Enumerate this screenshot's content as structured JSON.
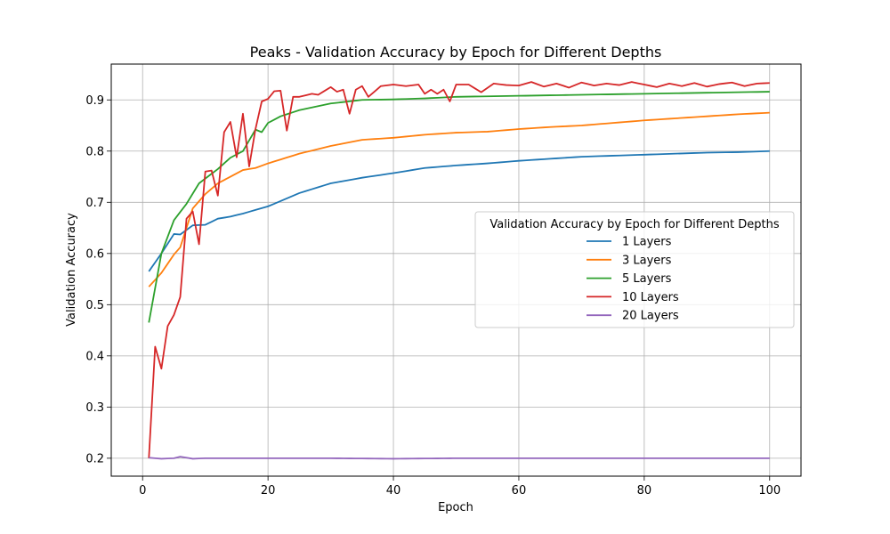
{
  "chart_data": {
    "type": "line",
    "title": "Peaks - Validation Accuracy by Epoch for Different Depths",
    "xlabel": "Epoch",
    "ylabel": "Validation Accuracy",
    "xlim": [
      -5,
      105
    ],
    "ylim": [
      0.165,
      0.97
    ],
    "xticks": [
      0,
      20,
      40,
      60,
      80,
      100
    ],
    "yticks": [
      0.2,
      0.3,
      0.4,
      0.5,
      0.6,
      0.7,
      0.8,
      0.9
    ],
    "ytick_labels": [
      "0.2",
      "0.3",
      "0.4",
      "0.5",
      "0.6",
      "0.7",
      "0.8",
      "0.9"
    ],
    "grid": true,
    "legend": {
      "title": "Validation Accuracy by Epoch for Different Depths",
      "placement": "center-right"
    },
    "series": [
      {
        "name": "1 Layers",
        "color": "#1f77b4",
        "keypoints": [
          [
            1,
            0.565
          ],
          [
            3,
            0.6
          ],
          [
            5,
            0.638
          ],
          [
            6,
            0.637
          ],
          [
            8,
            0.655
          ],
          [
            10,
            0.656
          ],
          [
            12,
            0.668
          ],
          [
            14,
            0.672
          ],
          [
            16,
            0.678
          ],
          [
            20,
            0.692
          ],
          [
            25,
            0.718
          ],
          [
            30,
            0.737
          ],
          [
            35,
            0.748
          ],
          [
            40,
            0.757
          ],
          [
            45,
            0.767
          ],
          [
            50,
            0.772
          ],
          [
            55,
            0.776
          ],
          [
            60,
            0.781
          ],
          [
            65,
            0.785
          ],
          [
            70,
            0.789
          ],
          [
            75,
            0.791
          ],
          [
            80,
            0.793
          ],
          [
            85,
            0.795
          ],
          [
            90,
            0.797
          ],
          [
            95,
            0.798
          ],
          [
            100,
            0.8
          ]
        ]
      },
      {
        "name": "3 Layers",
        "color": "#ff7f0e",
        "keypoints": [
          [
            1,
            0.535
          ],
          [
            3,
            0.562
          ],
          [
            5,
            0.598
          ],
          [
            6,
            0.612
          ],
          [
            8,
            0.688
          ],
          [
            10,
            0.716
          ],
          [
            12,
            0.737
          ],
          [
            14,
            0.75
          ],
          [
            16,
            0.763
          ],
          [
            18,
            0.767
          ],
          [
            20,
            0.776
          ],
          [
            25,
            0.795
          ],
          [
            30,
            0.81
          ],
          [
            35,
            0.822
          ],
          [
            40,
            0.826
          ],
          [
            45,
            0.832
          ],
          [
            50,
            0.836
          ],
          [
            55,
            0.838
          ],
          [
            60,
            0.843
          ],
          [
            65,
            0.847
          ],
          [
            70,
            0.85
          ],
          [
            75,
            0.855
          ],
          [
            80,
            0.86
          ],
          [
            85,
            0.864
          ],
          [
            90,
            0.868
          ],
          [
            95,
            0.872
          ],
          [
            100,
            0.875
          ]
        ]
      },
      {
        "name": "5 Layers",
        "color": "#2ca02c",
        "keypoints": [
          [
            1,
            0.465
          ],
          [
            3,
            0.6
          ],
          [
            5,
            0.665
          ],
          [
            7,
            0.697
          ],
          [
            9,
            0.737
          ],
          [
            12,
            0.765
          ],
          [
            14,
            0.787
          ],
          [
            16,
            0.8
          ],
          [
            18,
            0.842
          ],
          [
            19,
            0.837
          ],
          [
            20,
            0.855
          ],
          [
            22,
            0.868
          ],
          [
            25,
            0.88
          ],
          [
            30,
            0.893
          ],
          [
            35,
            0.9
          ],
          [
            40,
            0.901
          ],
          [
            45,
            0.903
          ],
          [
            50,
            0.906
          ],
          [
            55,
            0.907
          ],
          [
            60,
            0.908
          ],
          [
            65,
            0.909
          ],
          [
            70,
            0.91
          ],
          [
            75,
            0.911
          ],
          [
            80,
            0.912
          ],
          [
            85,
            0.913
          ],
          [
            90,
            0.914
          ],
          [
            95,
            0.915
          ],
          [
            100,
            0.916
          ]
        ]
      },
      {
        "name": "10 Layers",
        "color": "#d62728",
        "keypoints": [
          [
            1,
            0.2
          ],
          [
            2,
            0.418
          ],
          [
            3,
            0.375
          ],
          [
            4,
            0.458
          ],
          [
            5,
            0.48
          ],
          [
            6,
            0.515
          ],
          [
            7,
            0.668
          ],
          [
            8,
            0.682
          ],
          [
            9,
            0.618
          ],
          [
            10,
            0.76
          ],
          [
            11,
            0.762
          ],
          [
            12,
            0.713
          ],
          [
            13,
            0.837
          ],
          [
            14,
            0.857
          ],
          [
            15,
            0.788
          ],
          [
            16,
            0.873
          ],
          [
            17,
            0.77
          ],
          [
            18,
            0.843
          ],
          [
            19,
            0.897
          ],
          [
            20,
            0.902
          ],
          [
            21,
            0.917
          ],
          [
            22,
            0.918
          ],
          [
            23,
            0.84
          ],
          [
            24,
            0.906
          ],
          [
            25,
            0.906
          ],
          [
            27,
            0.912
          ],
          [
            28,
            0.91
          ],
          [
            30,
            0.925
          ],
          [
            31,
            0.916
          ],
          [
            32,
            0.92
          ],
          [
            33,
            0.873
          ],
          [
            34,
            0.92
          ],
          [
            35,
            0.927
          ],
          [
            36,
            0.906
          ],
          [
            38,
            0.927
          ],
          [
            40,
            0.93
          ],
          [
            42,
            0.927
          ],
          [
            44,
            0.93
          ],
          [
            45,
            0.912
          ],
          [
            46,
            0.92
          ],
          [
            47,
            0.912
          ],
          [
            48,
            0.92
          ],
          [
            49,
            0.897
          ],
          [
            50,
            0.93
          ],
          [
            52,
            0.93
          ],
          [
            54,
            0.915
          ],
          [
            56,
            0.932
          ],
          [
            58,
            0.929
          ],
          [
            60,
            0.928
          ],
          [
            62,
            0.935
          ],
          [
            64,
            0.926
          ],
          [
            66,
            0.932
          ],
          [
            68,
            0.924
          ],
          [
            70,
            0.934
          ],
          [
            72,
            0.928
          ],
          [
            74,
            0.932
          ],
          [
            76,
            0.929
          ],
          [
            78,
            0.935
          ],
          [
            80,
            0.93
          ],
          [
            82,
            0.925
          ],
          [
            84,
            0.932
          ],
          [
            86,
            0.927
          ],
          [
            88,
            0.933
          ],
          [
            90,
            0.926
          ],
          [
            92,
            0.931
          ],
          [
            94,
            0.934
          ],
          [
            96,
            0.927
          ],
          [
            98,
            0.932
          ],
          [
            100,
            0.933
          ]
        ]
      },
      {
        "name": "20 Layers",
        "color": "#9467bd",
        "keypoints": [
          [
            1,
            0.201
          ],
          [
            3,
            0.199
          ],
          [
            5,
            0.2
          ],
          [
            6,
            0.203
          ],
          [
            8,
            0.199
          ],
          [
            10,
            0.2
          ],
          [
            15,
            0.2
          ],
          [
            20,
            0.2
          ],
          [
            30,
            0.2
          ],
          [
            40,
            0.199
          ],
          [
            50,
            0.2
          ],
          [
            60,
            0.2
          ],
          [
            70,
            0.2
          ],
          [
            80,
            0.2
          ],
          [
            90,
            0.2
          ],
          [
            100,
            0.2
          ]
        ]
      }
    ]
  }
}
